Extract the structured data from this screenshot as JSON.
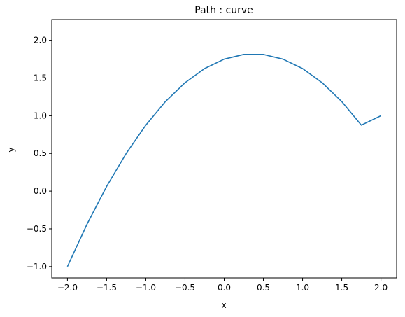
{
  "chart_data": {
    "type": "line",
    "title": "Path : curve",
    "xlabel": "x",
    "ylabel": "y",
    "xlim": [
      -2.2,
      2.2
    ],
    "ylim": [
      -1.15,
      2.275
    ],
    "xticks": [
      {
        "value": -2.0,
        "label": "−2.0"
      },
      {
        "value": -1.5,
        "label": "−1.5"
      },
      {
        "value": -1.0,
        "label": "−1.0"
      },
      {
        "value": -0.5,
        "label": "−0.5"
      },
      {
        "value": 0.0,
        "label": "0.0"
      },
      {
        "value": 0.5,
        "label": "0.5"
      },
      {
        "value": 1.0,
        "label": "1.0"
      },
      {
        "value": 1.5,
        "label": "1.5"
      },
      {
        "value": 2.0,
        "label": "2.0"
      }
    ],
    "yticks": [
      {
        "value": -1.0,
        "label": "−1.0"
      },
      {
        "value": -0.5,
        "label": "−0.5"
      },
      {
        "value": 0.0,
        "label": "0.0"
      },
      {
        "value": 0.5,
        "label": "0.5"
      },
      {
        "value": 1.0,
        "label": "1.0"
      },
      {
        "value": 1.5,
        "label": "1.5"
      },
      {
        "value": 2.0,
        "label": "2.0"
      }
    ],
    "grid": false,
    "series": [
      {
        "color": "#1f77b4",
        "x": [
          -2.0,
          -1.75,
          -1.5,
          -1.25,
          -1.0,
          -0.75,
          -0.5,
          -0.25,
          0.0,
          0.25,
          0.5,
          0.75,
          1.0,
          1.25,
          1.5,
          1.75,
          2.0
        ],
        "y": [
          -1.0,
          -0.4375,
          0.0625,
          0.5,
          0.875,
          1.1875,
          1.4375,
          1.625,
          1.75,
          1.8125,
          1.8125,
          1.75,
          1.625,
          1.4375,
          1.1875,
          0.875,
          1.0
        ]
      }
    ]
  }
}
